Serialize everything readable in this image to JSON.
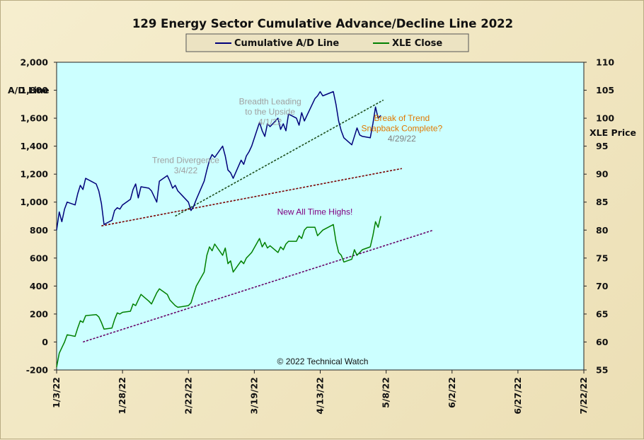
{
  "chart_data": {
    "type": "line",
    "title": "129 Energy Sector Cumulative Advance/Decline Line 2022",
    "y_left_label": [
      "A/D Line"
    ],
    "y_right_label": "XLE Price",
    "ylim_left": [
      -200,
      2000
    ],
    "ylim_right": [
      55,
      110
    ],
    "y_left_ticks": [
      "2,000",
      "1,800",
      "1,600",
      "1,400",
      "1,200",
      "1,000",
      "800",
      "600",
      "400",
      "200",
      "0",
      "-200"
    ],
    "y_right_ticks": [
      "110",
      "105",
      "100",
      "95",
      "90",
      "85",
      "80",
      "75",
      "70",
      "65",
      "60",
      "55"
    ],
    "x_ticks": [
      "1/3/22",
      "1/28/22",
      "2/22/22",
      "3/19/22",
      "4/13/22",
      "5/8/22",
      "6/2/22",
      "6/27/22",
      "7/22/22"
    ],
    "grid": false,
    "background_color": "#ccffff",
    "legend": {
      "placement": "top-center",
      "items": [
        {
          "label": "Cumulative A/D Line",
          "color": "#00007a"
        },
        {
          "label": "XLE Close",
          "color": "#008000"
        }
      ]
    },
    "copyright": "© 2022 Technical Watch",
    "series": [
      {
        "name": "Cumulative A/D Line",
        "axis": "left",
        "color": "#00007a",
        "points": [
          [
            "2022-01-03",
            800
          ],
          [
            "2022-01-04",
            930
          ],
          [
            "2022-01-05",
            860
          ],
          [
            "2022-01-06",
            950
          ],
          [
            "2022-01-07",
            1000
          ],
          [
            "2022-01-10",
            980
          ],
          [
            "2022-01-11",
            1060
          ],
          [
            "2022-01-12",
            1120
          ],
          [
            "2022-01-13",
            1090
          ],
          [
            "2022-01-14",
            1170
          ],
          [
            "2022-01-18",
            1130
          ],
          [
            "2022-01-19",
            1080
          ],
          [
            "2022-01-20",
            990
          ],
          [
            "2022-01-21",
            840
          ],
          [
            "2022-01-24",
            870
          ],
          [
            "2022-01-25",
            940
          ],
          [
            "2022-01-26",
            960
          ],
          [
            "2022-01-27",
            950
          ],
          [
            "2022-01-28",
            980
          ],
          [
            "2022-01-31",
            1020
          ],
          [
            "2022-02-01",
            1090
          ],
          [
            "2022-02-02",
            1130
          ],
          [
            "2022-02-03",
            1030
          ],
          [
            "2022-02-04",
            1110
          ],
          [
            "2022-02-07",
            1100
          ],
          [
            "2022-02-08",
            1080
          ],
          [
            "2022-02-09",
            1040
          ],
          [
            "2022-02-10",
            1000
          ],
          [
            "2022-02-11",
            1150
          ],
          [
            "2022-02-14",
            1190
          ],
          [
            "2022-02-15",
            1150
          ],
          [
            "2022-02-16",
            1100
          ],
          [
            "2022-02-17",
            1120
          ],
          [
            "2022-02-18",
            1080
          ],
          [
            "2022-02-22",
            1000
          ],
          [
            "2022-02-23",
            940
          ],
          [
            "2022-02-24",
            970
          ],
          [
            "2022-02-25",
            1020
          ],
          [
            "2022-02-28",
            1150
          ],
          [
            "2022-03-01",
            1230
          ],
          [
            "2022-03-02",
            1300
          ],
          [
            "2022-03-03",
            1340
          ],
          [
            "2022-03-04",
            1320
          ],
          [
            "2022-03-07",
            1400
          ],
          [
            "2022-03-08",
            1330
          ],
          [
            "2022-03-09",
            1230
          ],
          [
            "2022-03-10",
            1210
          ],
          [
            "2022-03-11",
            1170
          ],
          [
            "2022-03-14",
            1300
          ],
          [
            "2022-03-15",
            1270
          ],
          [
            "2022-03-16",
            1330
          ],
          [
            "2022-03-17",
            1360
          ],
          [
            "2022-03-18",
            1400
          ],
          [
            "2022-03-21",
            1570
          ],
          [
            "2022-03-22",
            1510
          ],
          [
            "2022-03-23",
            1470
          ],
          [
            "2022-03-24",
            1560
          ],
          [
            "2022-03-25",
            1540
          ],
          [
            "2022-03-28",
            1600
          ],
          [
            "2022-03-29",
            1520
          ],
          [
            "2022-03-30",
            1560
          ],
          [
            "2022-03-31",
            1510
          ],
          [
            "2022-04-01",
            1630
          ],
          [
            "2022-04-04",
            1600
          ],
          [
            "2022-04-05",
            1550
          ],
          [
            "2022-04-06",
            1640
          ],
          [
            "2022-04-07",
            1580
          ],
          [
            "2022-04-08",
            1620
          ],
          [
            "2022-04-11",
            1740
          ],
          [
            "2022-04-12",
            1760
          ],
          [
            "2022-04-13",
            1790
          ],
          [
            "2022-04-14",
            1760
          ],
          [
            "2022-04-18",
            1790
          ],
          [
            "2022-04-19",
            1700
          ],
          [
            "2022-04-20",
            1580
          ],
          [
            "2022-04-21",
            1510
          ],
          [
            "2022-04-22",
            1460
          ],
          [
            "2022-04-25",
            1410
          ],
          [
            "2022-04-26",
            1470
          ],
          [
            "2022-04-27",
            1530
          ],
          [
            "2022-04-28",
            1480
          ],
          [
            "2022-04-29",
            1470
          ],
          [
            "2022-05-02",
            1460
          ],
          [
            "2022-05-03",
            1560
          ],
          [
            "2022-05-04",
            1680
          ],
          [
            "2022-05-05",
            1600
          ],
          [
            "2022-05-06",
            1620
          ]
        ]
      },
      {
        "name": "XLE Close",
        "axis": "right",
        "color": "#008000",
        "points": [
          [
            "2022-01-03",
            55.5
          ],
          [
            "2022-01-04",
            58.0
          ],
          [
            "2022-01-05",
            59.0
          ],
          [
            "2022-01-06",
            60.0
          ],
          [
            "2022-01-07",
            61.3
          ],
          [
            "2022-01-10",
            61.0
          ],
          [
            "2022-01-11",
            62.5
          ],
          [
            "2022-01-12",
            63.8
          ],
          [
            "2022-01-13",
            63.5
          ],
          [
            "2022-01-14",
            64.7
          ],
          [
            "2022-01-18",
            64.9
          ],
          [
            "2022-01-19",
            64.5
          ],
          [
            "2022-01-20",
            63.5
          ],
          [
            "2022-01-21",
            62.3
          ],
          [
            "2022-01-24",
            62.5
          ],
          [
            "2022-01-25",
            64.0
          ],
          [
            "2022-01-26",
            65.2
          ],
          [
            "2022-01-27",
            65.0
          ],
          [
            "2022-01-28",
            65.3
          ],
          [
            "2022-01-31",
            65.5
          ],
          [
            "2022-02-01",
            66.8
          ],
          [
            "2022-02-02",
            66.5
          ],
          [
            "2022-02-03",
            67.5
          ],
          [
            "2022-02-04",
            68.5
          ],
          [
            "2022-02-07",
            67.3
          ],
          [
            "2022-02-08",
            66.8
          ],
          [
            "2022-02-09",
            67.8
          ],
          [
            "2022-02-10",
            68.8
          ],
          [
            "2022-02-11",
            69.5
          ],
          [
            "2022-02-14",
            68.5
          ],
          [
            "2022-02-15",
            67.5
          ],
          [
            "2022-02-16",
            67.0
          ],
          [
            "2022-02-17",
            66.5
          ],
          [
            "2022-02-18",
            66.2
          ],
          [
            "2022-02-22",
            66.5
          ],
          [
            "2022-02-23",
            67.0
          ],
          [
            "2022-02-24",
            68.5
          ],
          [
            "2022-02-25",
            70.0
          ],
          [
            "2022-02-28",
            72.5
          ],
          [
            "2022-03-01",
            75.5
          ],
          [
            "2022-03-02",
            77.0
          ],
          [
            "2022-03-03",
            76.3
          ],
          [
            "2022-03-04",
            77.5
          ],
          [
            "2022-03-07",
            75.5
          ],
          [
            "2022-03-08",
            76.8
          ],
          [
            "2022-03-09",
            74.0
          ],
          [
            "2022-03-10",
            74.5
          ],
          [
            "2022-03-11",
            72.5
          ],
          [
            "2022-03-14",
            74.5
          ],
          [
            "2022-03-15",
            74.0
          ],
          [
            "2022-03-16",
            75.0
          ],
          [
            "2022-03-17",
            75.5
          ],
          [
            "2022-03-18",
            76.0
          ],
          [
            "2022-03-21",
            78.5
          ],
          [
            "2022-03-22",
            77.0
          ],
          [
            "2022-03-23",
            77.8
          ],
          [
            "2022-03-24",
            76.8
          ],
          [
            "2022-03-25",
            77.2
          ],
          [
            "2022-03-28",
            76.0
          ],
          [
            "2022-03-29",
            77.0
          ],
          [
            "2022-03-30",
            76.5
          ],
          [
            "2022-03-31",
            77.5
          ],
          [
            "2022-04-01",
            78.0
          ],
          [
            "2022-04-04",
            78.0
          ],
          [
            "2022-04-05",
            79.0
          ],
          [
            "2022-04-06",
            78.5
          ],
          [
            "2022-04-07",
            80.0
          ],
          [
            "2022-04-08",
            80.5
          ],
          [
            "2022-04-11",
            80.5
          ],
          [
            "2022-04-12",
            79.0
          ],
          [
            "2022-04-13",
            79.5
          ],
          [
            "2022-04-14",
            80.0
          ],
          [
            "2022-04-18",
            81.0
          ],
          [
            "2022-04-19",
            78.0
          ],
          [
            "2022-04-20",
            76.0
          ],
          [
            "2022-04-21",
            75.5
          ],
          [
            "2022-04-22",
            74.3
          ],
          [
            "2022-04-25",
            74.8
          ],
          [
            "2022-04-26",
            76.5
          ],
          [
            "2022-04-27",
            75.5
          ],
          [
            "2022-04-28",
            76.0
          ],
          [
            "2022-04-29",
            76.5
          ],
          [
            "2022-05-02",
            77.0
          ],
          [
            "2022-05-03",
            79.0
          ],
          [
            "2022-05-04",
            81.5
          ],
          [
            "2022-05-05",
            80.5
          ],
          [
            "2022-05-06",
            82.5
          ]
        ]
      }
    ],
    "trendlines": [
      {
        "name": "A/D uptrend",
        "axis": "left",
        "color": "#1a4d1a",
        "from": [
          "2022-02-17",
          900
        ],
        "to": [
          "2022-05-07",
          1730
        ]
      },
      {
        "name": "A/D support",
        "axis": "left",
        "color": "#7a0000",
        "from": [
          "2022-01-20",
          830
        ],
        "to": [
          "2022-05-14",
          1240
        ]
      },
      {
        "name": "XLE support",
        "axis": "right",
        "color": "#660066",
        "from": [
          "2022-01-13",
          60.0
        ],
        "to": [
          "2022-05-26",
          80.0
        ]
      }
    ],
    "annotations": [
      {
        "lines": [
          "Trend Divergence",
          "3/4/22"
        ],
        "color": "#a0a0a0",
        "at": [
          "2022-02-21",
          1280
        ]
      },
      {
        "lines": [
          "Breadth Leading",
          "to the Upside",
          "4/1/22"
        ],
        "color": "#a0a0a0",
        "at": [
          "2022-03-25",
          1700
        ]
      },
      {
        "lines": [
          "Break of Trend",
          "Snapback Complete?",
          "4/29/22"
        ],
        "colors": [
          "#e07800",
          "#e07800",
          "#808080"
        ],
        "at": [
          "2022-05-14",
          1580
        ]
      },
      {
        "lines": [
          "New All Time Highs!"
        ],
        "color": "#800080",
        "at": [
          "2022-04-11",
          910
        ]
      }
    ]
  }
}
